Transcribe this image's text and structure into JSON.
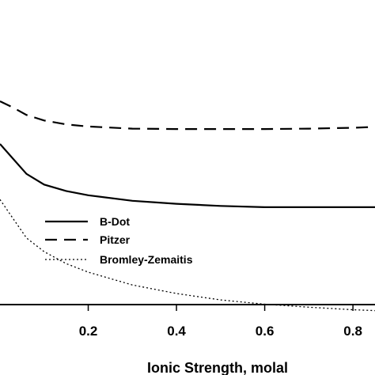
{
  "chart_data": {
    "type": "line",
    "title": "",
    "xlabel": "Ionic Strength, molal",
    "ylabel": "",
    "xlim": [
      0.0,
      0.85
    ],
    "xticks": [
      "0.2",
      "0.4",
      "0.6",
      "0.8"
    ],
    "xtick_values": [
      0.2,
      0.4,
      0.6,
      0.8
    ],
    "grid": false,
    "legend_placement": "left",
    "series": [
      {
        "name": "B-Dot",
        "style": "solid",
        "x": [
          0.0,
          0.03,
          0.06,
          0.1,
          0.15,
          0.2,
          0.3,
          0.4,
          0.5,
          0.6,
          0.7,
          0.8,
          0.85
        ],
        "y": [
          1.0,
          0.965,
          0.93,
          0.905,
          0.89,
          0.88,
          0.867,
          0.86,
          0.855,
          0.852,
          0.852,
          0.852,
          0.852
        ]
      },
      {
        "name": "Pitzer",
        "style": "dashed",
        "x": [
          0.0,
          0.03,
          0.06,
          0.1,
          0.15,
          0.2,
          0.3,
          0.4,
          0.5,
          0.6,
          0.7,
          0.8,
          0.85
        ],
        "y": [
          1.1,
          1.085,
          1.068,
          1.055,
          1.046,
          1.041,
          1.036,
          1.035,
          1.035,
          1.035,
          1.036,
          1.038,
          1.04
        ]
      },
      {
        "name": "Bromley-Zemaitis",
        "style": "dotted",
        "x": [
          0.0,
          0.03,
          0.06,
          0.1,
          0.15,
          0.2,
          0.3,
          0.4,
          0.5,
          0.6,
          0.7,
          0.8,
          0.85
        ],
        "y": [
          0.87,
          0.825,
          0.78,
          0.748,
          0.72,
          0.7,
          0.67,
          0.65,
          0.635,
          0.625,
          0.618,
          0.612,
          0.61
        ]
      }
    ]
  }
}
